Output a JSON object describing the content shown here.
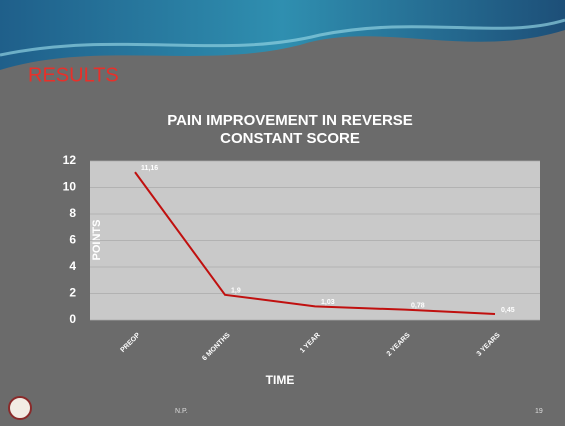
{
  "slide": {
    "heading": "RESULTS",
    "footer": "N.P.",
    "page_number": "19"
  },
  "chart_data": {
    "type": "line",
    "title": "PAIN IMPROVEMENT IN REVERSE CONSTANT SCORE",
    "x_label": "TIME",
    "y_label": "POINTS",
    "categories": [
      "PREOP",
      "6 MONTHS",
      "1 YEAR",
      "2 YEARS",
      "3 YEARS"
    ],
    "values": [
      11.16,
      1.9,
      1.03,
      0.78,
      0.45
    ],
    "value_labels": [
      "11,16",
      "1,9",
      "1,03",
      "0,78",
      "0,45"
    ],
    "color": "#c0100f",
    "ylim": [
      0,
      12
    ],
    "yticks": [
      0,
      2,
      4,
      6,
      8,
      10,
      12
    ],
    "grid": true
  }
}
